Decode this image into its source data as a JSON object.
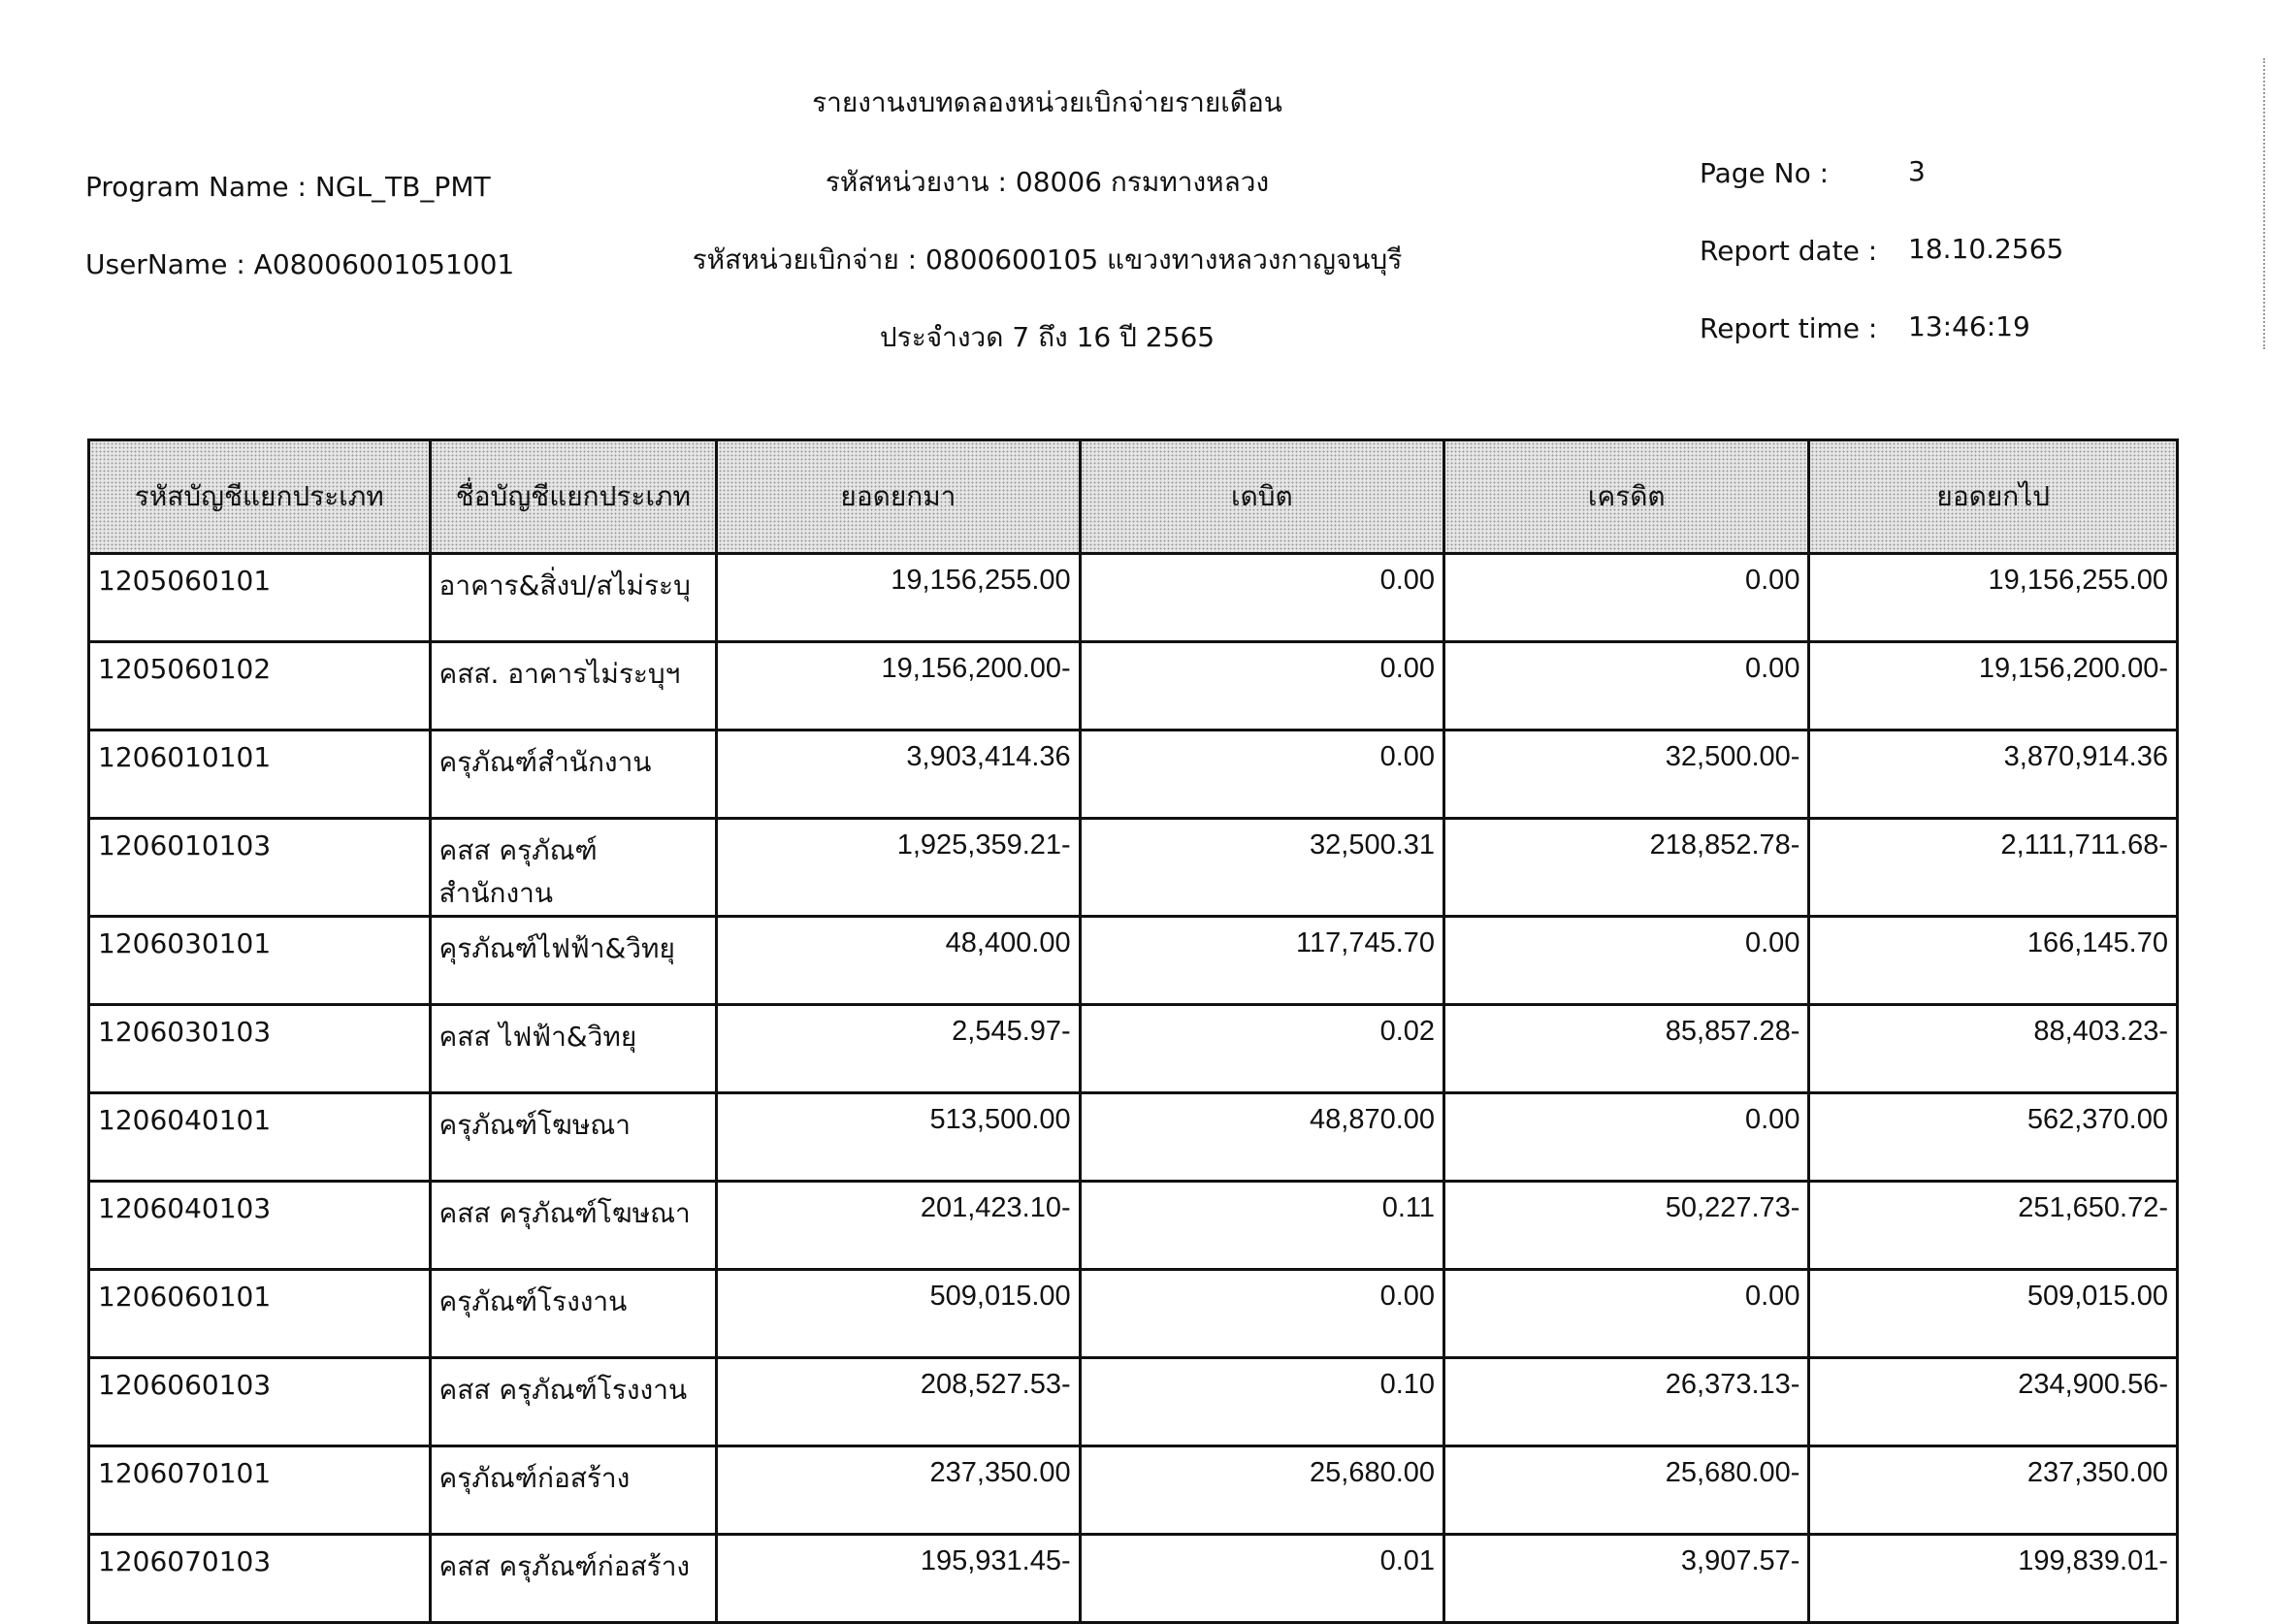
{
  "header": {
    "title": "รายงานงบทดลองหน่วยเบิกจ่ายรายเดือน",
    "agency": "รหัสหน่วยงาน : 08006 กรมทางหลวง",
    "disbursement_unit": "รหัสหน่วยเบิกจ่าย : 0800600105 แขวงทางหลวงกาญจนบุรี",
    "period": "ประจำงวด 7 ถึง 16 ปี 2565",
    "program_name": "Program Name : NGL_TB_PMT",
    "username": "UserName : A08006001051001",
    "page_no_label": "Page No :",
    "page_no": "3",
    "report_date_label": "Report date :",
    "report_date": "18.10.2565",
    "report_time_label": "Report time :",
    "report_time": "13:46:19"
  },
  "table": {
    "columns": [
      "รหัสบัญชีแยกประเภท",
      "ชื่อบัญชีแยกประเภท",
      "ยอดยกมา",
      "เดบิต",
      "เครดิต",
      "ยอดยกไป"
    ],
    "rows": [
      [
        "1205060101",
        "อาคาร&สิ่งป/สไม่ระบุ",
        "19,156,255.00",
        "0.00",
        "0.00",
        "19,156,255.00"
      ],
      [
        "1205060102",
        "คสส. อาคารไม่ระบุฯ",
        "19,156,200.00-",
        "0.00",
        "0.00",
        "19,156,200.00-"
      ],
      [
        "1206010101",
        "ครุภัณฑ์สำนักงาน",
        "3,903,414.36",
        "0.00",
        "32,500.00-",
        "3,870,914.36"
      ],
      [
        "1206010103",
        "คสส ครุภัณฑ์สำนักงาน",
        "1,925,359.21-",
        "32,500.31",
        "218,852.78-",
        "2,111,711.68-"
      ],
      [
        "1206030101",
        "คุรภัณฑ์ไฟฟ้า&วิทยุ",
        "48,400.00",
        "117,745.70",
        "0.00",
        "166,145.70"
      ],
      [
        "1206030103",
        "คสส ไฟฟ้า&วิทยุ",
        "2,545.97-",
        "0.02",
        "85,857.28-",
        "88,403.23-"
      ],
      [
        "1206040101",
        "ครุภัณฑ์โฆษณา",
        "513,500.00",
        "48,870.00",
        "0.00",
        "562,370.00"
      ],
      [
        "1206040103",
        "คสส ครุภัณฑ์โฆษณา",
        "201,423.10-",
        "0.11",
        "50,227.73-",
        "251,650.72-"
      ],
      [
        "1206060101",
        "ครุภัณฑ์โรงงาน",
        "509,015.00",
        "0.00",
        "0.00",
        "509,015.00"
      ],
      [
        "1206060103",
        "คสส ครุภัณฑ์โรงงาน",
        "208,527.53-",
        "0.10",
        "26,373.13-",
        "234,900.56-"
      ],
      [
        "1206070101",
        "ครุภัณฑ์ก่อสร้าง",
        "237,350.00",
        "25,680.00",
        "25,680.00-",
        "237,350.00"
      ],
      [
        "1206070103",
        "คสส ครุภัณฑ์ก่อสร้าง",
        "195,931.45-",
        "0.01",
        "3,907.57-",
        "199,839.01-"
      ]
    ]
  }
}
